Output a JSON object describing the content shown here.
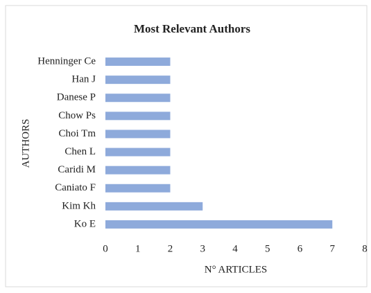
{
  "chart_data": {
    "type": "bar",
    "orientation": "horizontal",
    "title": "Most Relevant Authors",
    "x_label": "N° ARTICLES",
    "y_label": "AUTHORS",
    "categories": [
      "Henninger Ce",
      "Han J",
      "Danese P",
      "Chow Ps",
      "Choi Tm",
      "Chen L",
      "Caridi M",
      "Caniato F",
      "Kim Kh",
      "Ko E"
    ],
    "values": [
      2,
      2,
      2,
      2,
      2,
      2,
      2,
      2,
      3,
      7
    ],
    "color": "#8eaadb",
    "xlim": [
      0,
      8
    ],
    "xticks": [
      0,
      1,
      2,
      3,
      4,
      5,
      6,
      7,
      8
    ],
    "grid": false
  }
}
